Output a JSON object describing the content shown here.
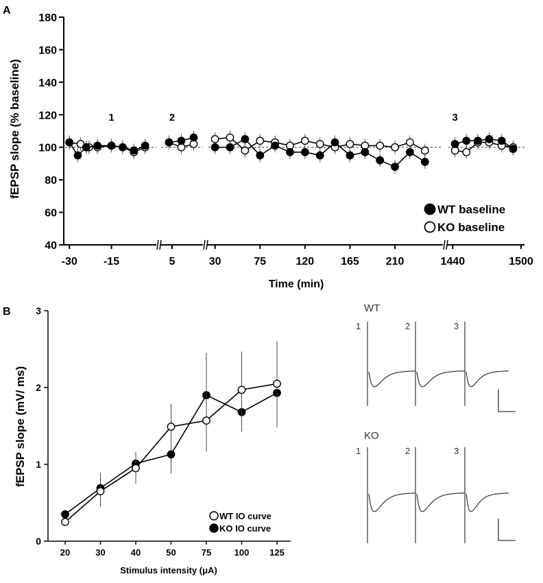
{
  "panel_a": {
    "label": "A",
    "chart_data": {
      "type": "line",
      "ylabel": "fEPSP slope (% baseline)",
      "xlabel": "Time (min)",
      "ylim": [
        40,
        180
      ],
      "yticks": [
        40,
        60,
        80,
        100,
        120,
        140,
        160,
        180
      ],
      "baseline_value": 100,
      "segments": [
        {
          "name": "pre-baseline",
          "xlim": [
            -32,
            1
          ],
          "xticks": [
            -30,
            -15
          ],
          "wt": {
            "x": [
              -30,
              -27,
              -24,
              -20,
              -15,
              -11,
              -7,
              -3
            ],
            "y": [
              103,
              95,
              100,
              101,
              101,
              100,
              98,
              101
            ]
          },
          "ko": {
            "x": [
              -30,
              -26,
              -23,
              -20,
              -15,
              -11,
              -7,
              -3
            ],
            "y": [
              103,
              102,
              100,
              100,
              101,
              100,
              97,
              100
            ]
          }
        },
        {
          "name": "short",
          "xlim": [
            1,
            15
          ],
          "xticks": [
            5
          ],
          "wt": {
            "x": [
              4,
              8,
              12
            ],
            "y": [
              103,
              104,
              106
            ]
          },
          "ko": {
            "x": [
              4,
              8,
              12
            ],
            "y": [
              103,
              100,
              102
            ]
          }
        },
        {
          "name": "long",
          "xlim": [
            22,
            258
          ],
          "xticks": [
            30,
            75,
            120,
            165,
            210
          ],
          "wt": {
            "x": [
              30,
              45,
              60,
              75,
              90,
              105,
              120,
              135,
              150,
              165,
              180,
              195,
              210,
              225,
              240
            ],
            "y": [
              100,
              100,
              105,
              95,
              101,
              97,
              97,
              95,
              103,
              95,
              97,
              92,
              88,
              97,
              91
            ]
          },
          "ko": {
            "x": [
              30,
              45,
              60,
              75,
              90,
              105,
              120,
              135,
              150,
              165,
              180,
              195,
              210,
              225,
              240
            ],
            "y": [
              105,
              106,
              98,
              104,
              103,
              101,
              104,
              102,
              100,
              102,
              101,
              101,
              100,
              103,
              98
            ]
          }
        },
        {
          "name": "day",
          "xlim": [
            1435,
            1503
          ],
          "xticks": [
            1440,
            1500
          ],
          "wt": {
            "x": [
              1442,
              1452,
              1462,
              1472,
              1483,
              1493
            ],
            "y": [
              102,
              104,
              104,
              105,
              104,
              99
            ]
          },
          "ko": {
            "x": [
              1442,
              1452,
              1462,
              1472,
              1483,
              1493
            ],
            "y": [
              98,
              97,
              103,
              103,
              101,
              100
            ]
          }
        }
      ],
      "time_markers": [
        {
          "label": "1",
          "x": -15
        },
        {
          "label": "2",
          "x": 5
        },
        {
          "label": "3",
          "x": 1442
        }
      ],
      "legend": [
        {
          "label": "WT baseline",
          "marker": "filled"
        },
        {
          "label": "KO baseline",
          "marker": "open"
        }
      ]
    }
  },
  "panel_b": {
    "label": "B",
    "chart_data": {
      "type": "line",
      "categories": [
        "20",
        "30",
        "40",
        "50",
        "75",
        "100",
        "125"
      ],
      "ylabel": "fEPSP slope (mV/ ms)",
      "xlabel": "Stimulus intensity (μA)",
      "ylim": [
        0,
        3
      ],
      "yticks": [
        0,
        1,
        2,
        3
      ],
      "series": [
        {
          "name": "WT IO curve",
          "marker": "open",
          "values": [
            0.25,
            0.65,
            0.95,
            1.49,
            1.57,
            1.97,
            2.05
          ],
          "error": [
            0.05,
            0.2,
            0.2,
            0.3,
            0.4,
            0.5,
            0.55
          ]
        },
        {
          "name": "KO IO curve",
          "marker": "filled",
          "values": [
            0.35,
            0.69,
            1.01,
            1.13,
            1.9,
            1.68,
            1.93
          ],
          "error": [
            0.05,
            0.2,
            0.15,
            0.25,
            0.55,
            0.25,
            0.45
          ]
        }
      ],
      "legend": [
        {
          "label": "WT IO curve",
          "marker": "open"
        },
        {
          "label": "KO IO curve",
          "marker": "filled"
        }
      ]
    }
  },
  "traces": {
    "wt": {
      "label": "WT",
      "markers": [
        "1",
        "2",
        "3"
      ]
    },
    "ko": {
      "label": "KO",
      "markers": [
        "1",
        "2",
        "3"
      ]
    }
  }
}
